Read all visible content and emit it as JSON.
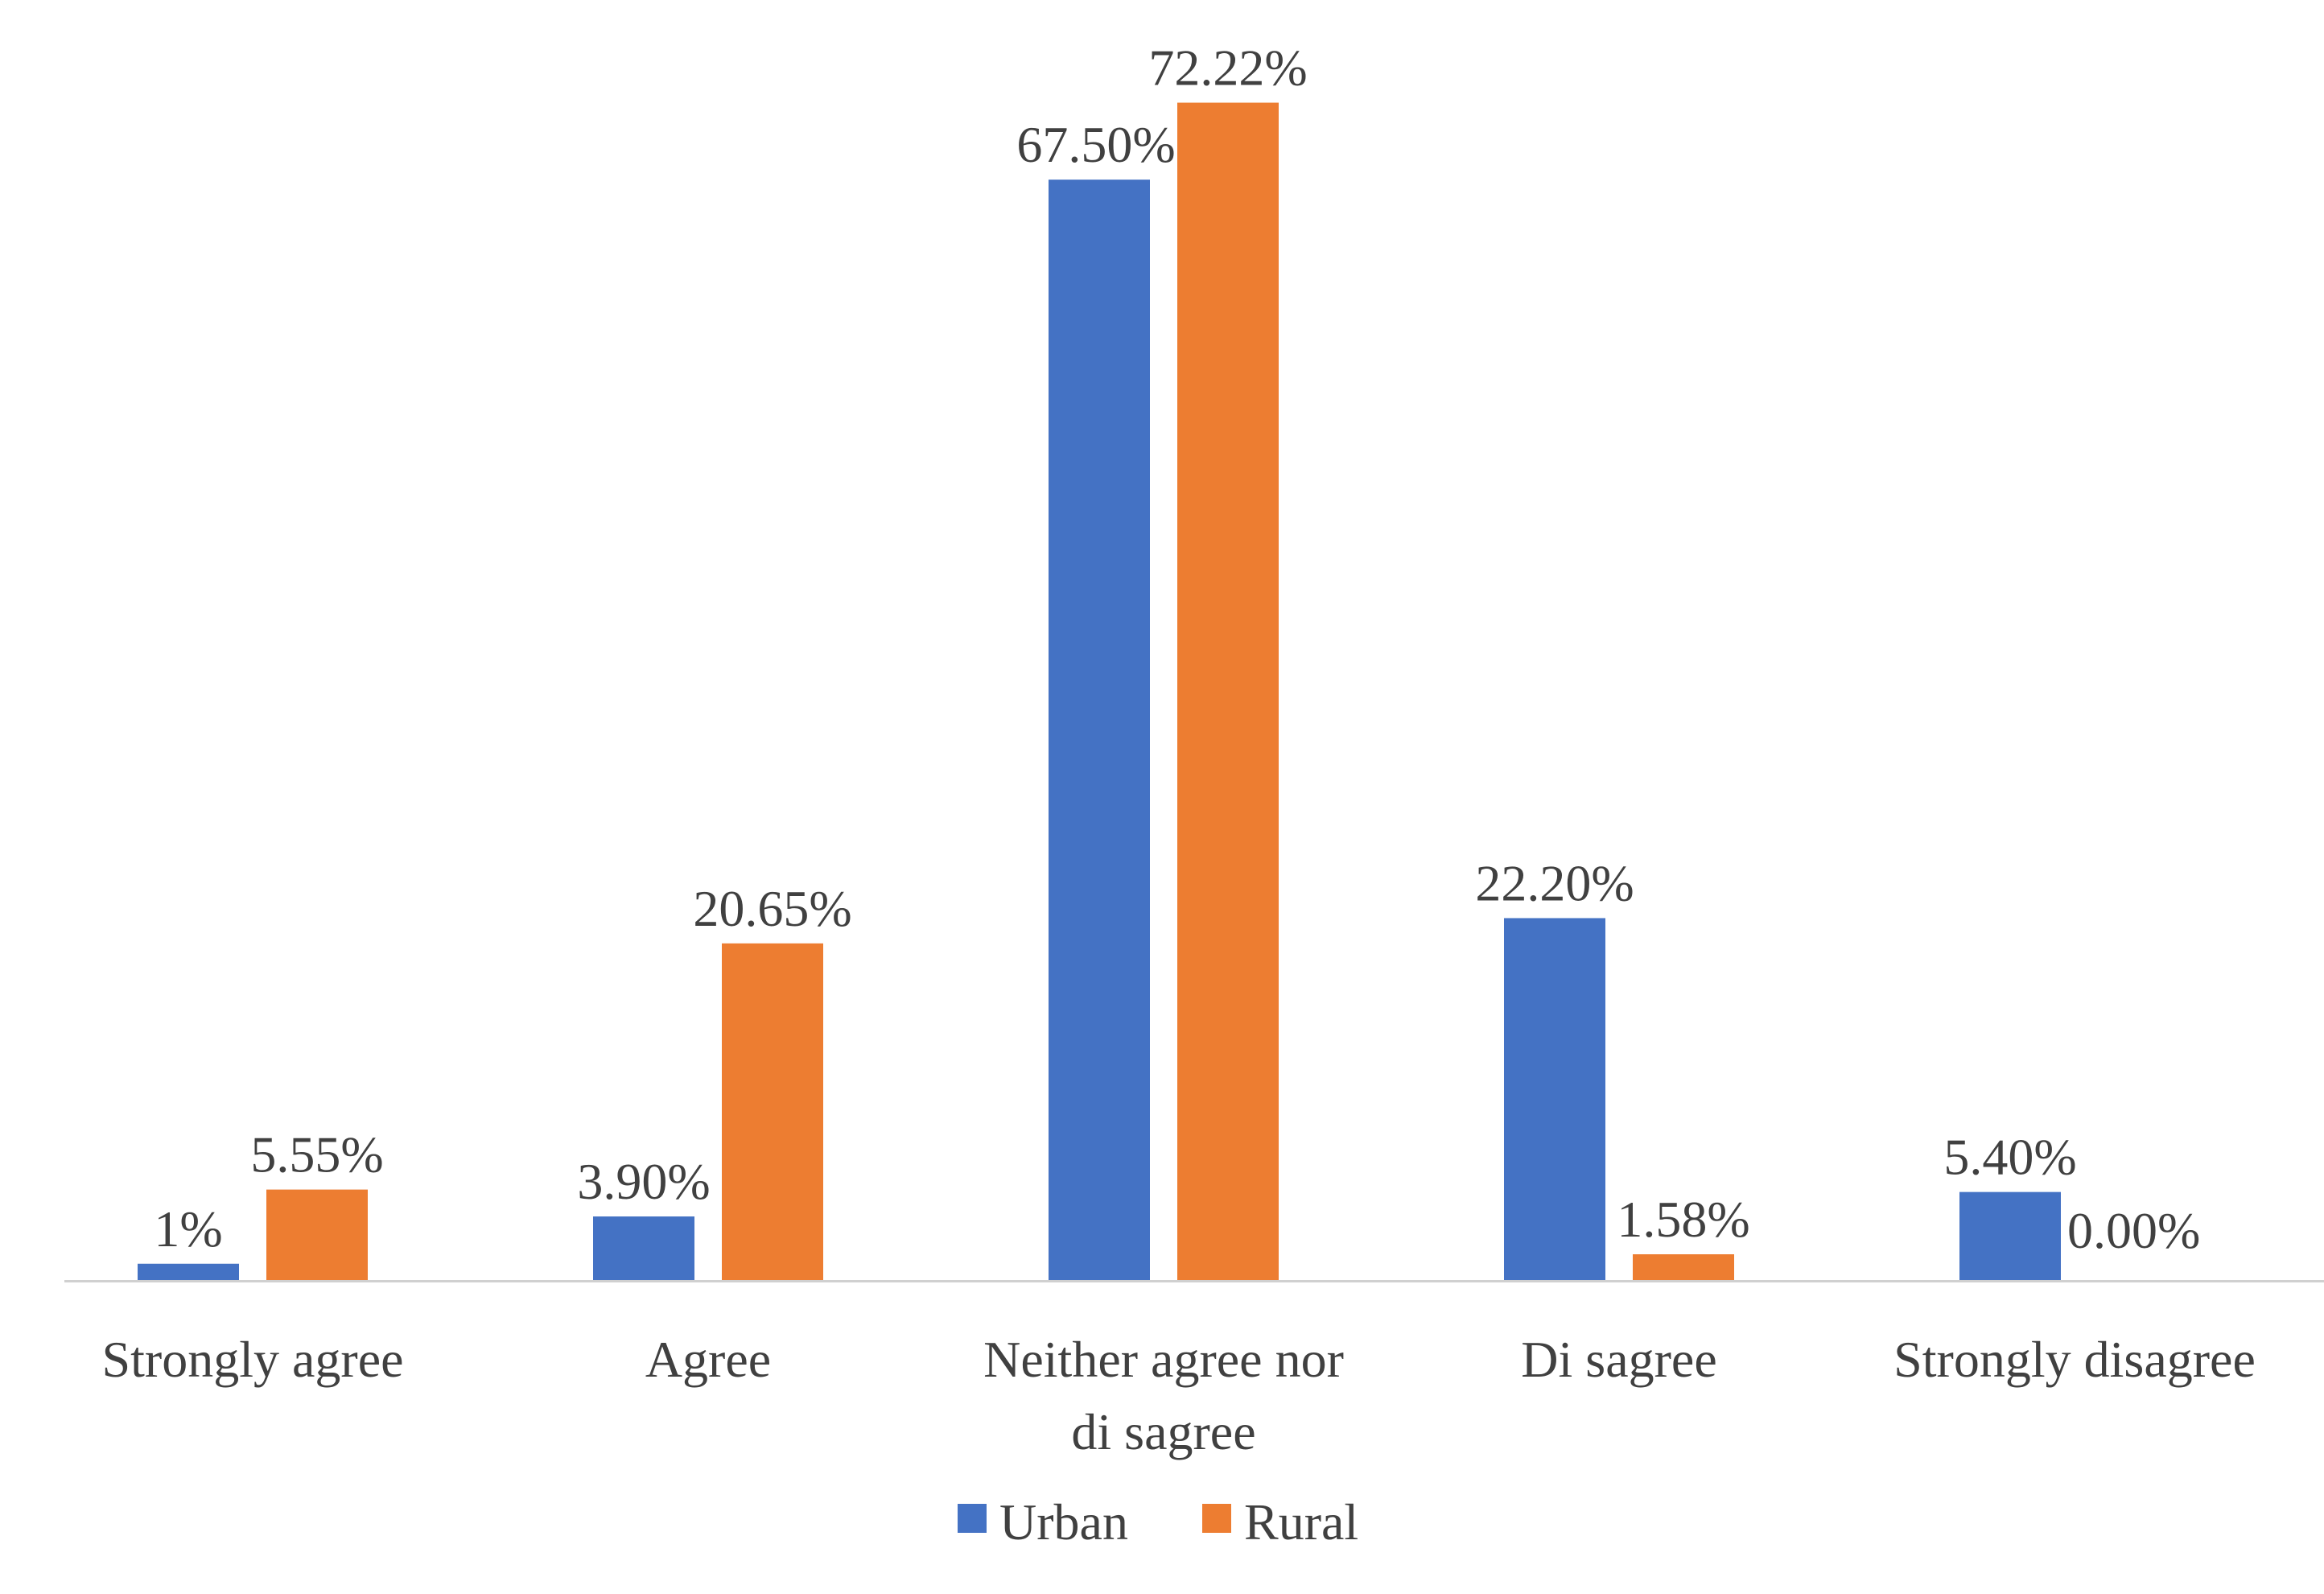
{
  "chart_data": {
    "type": "bar",
    "title": "",
    "xlabel": "",
    "ylabel": "",
    "ylim": [
      0,
      80
    ],
    "grid": false,
    "legend_position": "bottom",
    "categories": [
      [
        "Strongly agree"
      ],
      [
        "Agree"
      ],
      [
        "Neither agree nor",
        "di sagree"
      ],
      [
        "Di sagree"
      ],
      [
        "Strongly disagree"
      ]
    ],
    "series": [
      {
        "name": "Urban",
        "color": "#4472C4",
        "values": [
          1,
          3.9,
          67.5,
          22.2,
          5.4
        ],
        "labels": [
          "1%",
          "3.90%",
          "67.50%",
          "22.20%",
          "5.40%"
        ]
      },
      {
        "name": "Rural",
        "color": "#ED7D31",
        "values": [
          5.55,
          20.65,
          72.22,
          1.58,
          0
        ],
        "labels": [
          "5.55%",
          "20.65%",
          "72.22%",
          "1.58%",
          "0.00%"
        ]
      }
    ]
  }
}
